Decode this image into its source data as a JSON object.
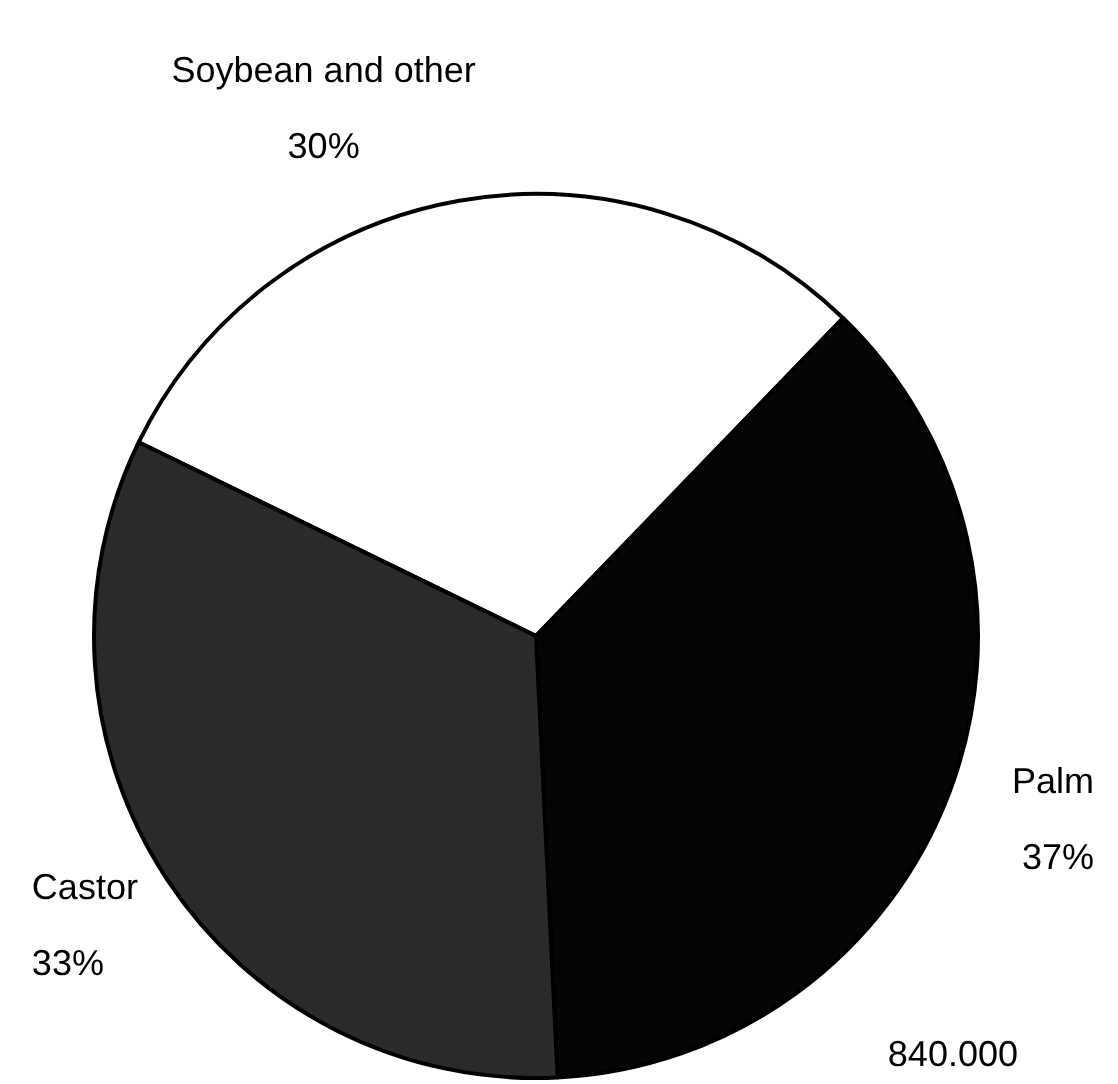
{
  "chart_data": {
    "type": "pie",
    "categories": [
      "Soybean and other",
      "Palm",
      "Castor"
    ],
    "values": [
      30,
      37,
      33
    ],
    "value_labels": [
      "30%",
      "37%",
      "33%"
    ],
    "colors": [
      "#ffffff",
      "#050505",
      "#2b2b2b"
    ],
    "annotations": [
      "840.000"
    ],
    "legend": false
  }
}
